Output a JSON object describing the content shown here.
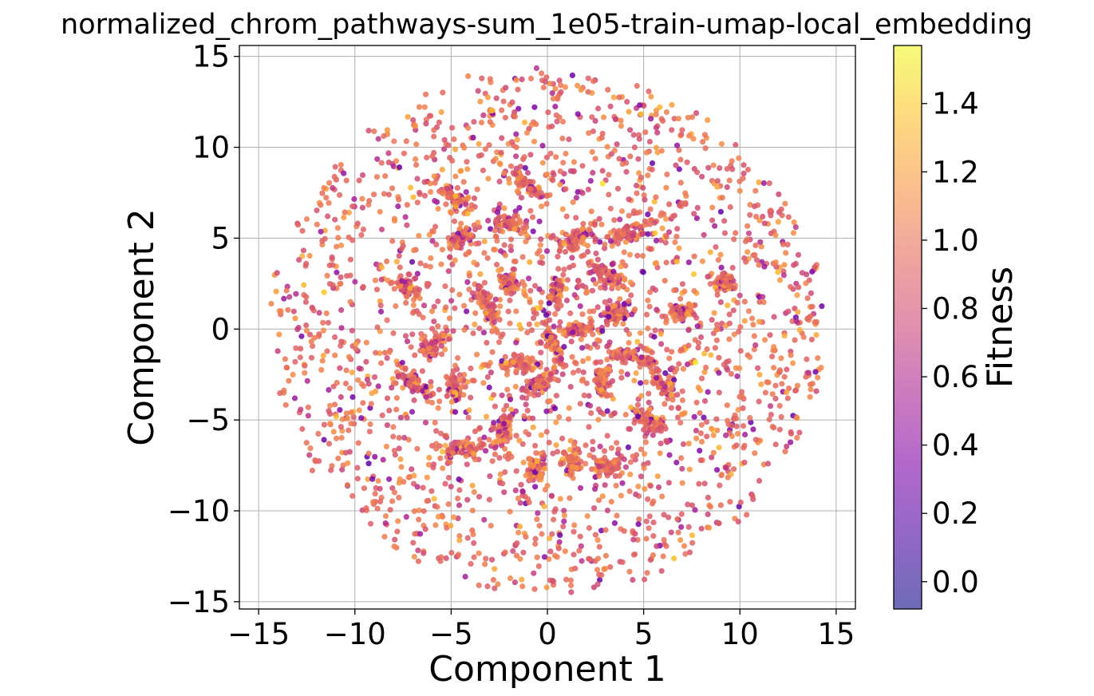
{
  "chart_data": {
    "type": "scatter",
    "title": "normalized_chrom_pathways-sum_1e05-train-umap-local_embedding",
    "xlabel": "Component 1",
    "ylabel": "Component 2",
    "xlim": [
      -16,
      16
    ],
    "ylim": [
      -15.4,
      15.6
    ],
    "xticks": [
      -15,
      -10,
      -5,
      0,
      5,
      10,
      15
    ],
    "yticks": [
      -15,
      -10,
      -5,
      0,
      5,
      10,
      15
    ],
    "xtick_labels": [
      "−15",
      "−10",
      "−5",
      "0",
      "5",
      "10",
      "15"
    ],
    "ytick_labels": [
      "−15",
      "−10",
      "−5",
      "0",
      "5",
      "10",
      "15"
    ],
    "grid": true,
    "point_distribution": {
      "shape": "disk",
      "center": [
        0,
        0
      ],
      "radius": 14.3,
      "approx_points": 4000,
      "dense_clusters": [
        [
          -4.5,
          5.0
        ],
        [
          -4.8,
          7.2
        ],
        [
          -7.3,
          2.2
        ],
        [
          -6.0,
          -0.8
        ],
        [
          -6.8,
          -3.0
        ],
        [
          -4.5,
          -6.6
        ],
        [
          -4.8,
          -3.2
        ],
        [
          -2.0,
          2.5
        ],
        [
          -1.5,
          -2.0
        ],
        [
          -0.5,
          -3.0
        ],
        [
          0.5,
          2.0
        ],
        [
          0.3,
          -0.9
        ],
        [
          1.5,
          5.0
        ],
        [
          3.0,
          3.0
        ],
        [
          3.5,
          0.8
        ],
        [
          2.8,
          -3.0
        ],
        [
          5.3,
          -5.1
        ],
        [
          4.5,
          -1.5
        ],
        [
          7.0,
          1.0
        ],
        [
          9.3,
          2.5
        ],
        [
          -2.3,
          -5.6
        ],
        [
          -0.6,
          -7.7
        ],
        [
          1.2,
          -7.2
        ],
        [
          4.2,
          5.2
        ],
        [
          -2.0,
          5.8
        ],
        [
          -3.0,
          1.2
        ],
        [
          1.6,
          0.0
        ],
        [
          3.0,
          -7.5
        ],
        [
          6.0,
          -3.0
        ],
        [
          -1.1,
          8.0
        ]
      ],
      "fitness_typical": 0.95,
      "fitness_spread": 0.25,
      "fitness_range": [
        -0.08,
        1.57
      ]
    },
    "colorbar": {
      "label": "Fitness",
      "colormap": "plasma",
      "alpha": 0.6,
      "vmin": -0.08,
      "vmax": 1.57,
      "ticks": [
        0.0,
        0.2,
        0.4,
        0.6,
        0.8,
        1.0,
        1.2,
        1.4
      ],
      "tick_labels": [
        "0.0",
        "0.2",
        "0.4",
        "0.6",
        "0.8",
        "1.0",
        "1.2",
        "1.4"
      ]
    },
    "colors": {
      "grid": "#b0b0b0",
      "axes": "#000000",
      "background": "#ffffff"
    }
  }
}
